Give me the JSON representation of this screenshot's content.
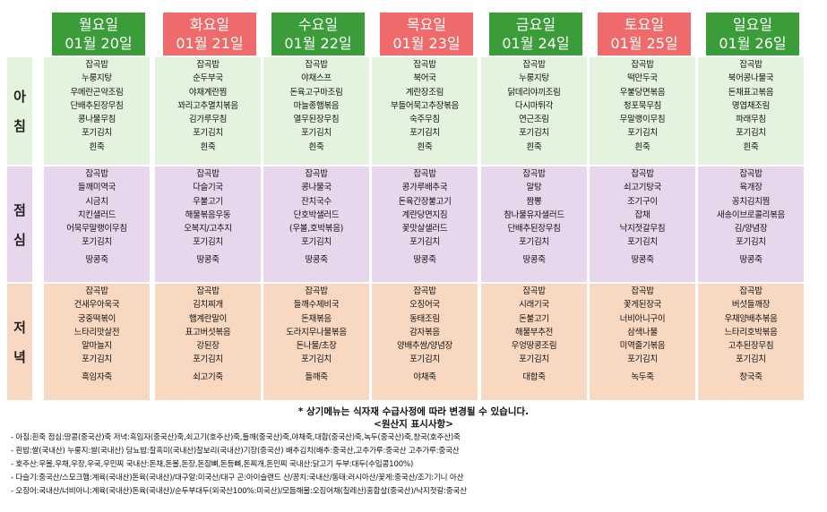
{
  "meal_labels": {
    "breakfast": [
      "아",
      "침"
    ],
    "lunch": [
      "점",
      "심"
    ],
    "dinner": [
      "저",
      "녁"
    ]
  },
  "days": [
    {
      "day": "월요일",
      "date": "01월 20일",
      "holiday": false,
      "breakfast": [
        "잡곡밥",
        "누룽지탕",
        "우메란곤약조림",
        "단배추된장무침",
        "콩나물무침",
        "포기김치",
        "흰죽"
      ],
      "lunch": [
        "잡곡밥",
        "들깨미역국",
        "시금치",
        "치킨샐러드",
        "어묵무말랭이무침",
        "포기김치",
        "땅콩죽"
      ],
      "dinner": [
        "잡곡밥",
        "건새우아욱국",
        "궁중떡볶이",
        "느타리맛살전",
        "알마늘지",
        "포기김치",
        "흑임자죽"
      ]
    },
    {
      "day": "화요일",
      "date": "01월 21일",
      "holiday": true,
      "breakfast": [
        "잡곡밥",
        "순두부국",
        "야채계란찜",
        "꽈리고추멸치볶음",
        "김가루무침",
        "포기김치",
        "흰죽"
      ],
      "lunch": [
        "잡곡밥",
        "다슬기국",
        "우불고기",
        "해물볶음우동",
        "오복지/고추지",
        "포기김치",
        "땅콩죽"
      ],
      "dinner": [
        "잡곡밥",
        "김치찌개",
        "햄계란말이",
        "표고버섯볶음",
        "강된장",
        "포기김치",
        "쇠고기죽"
      ]
    },
    {
      "day": "수요일",
      "date": "01월 22일",
      "holiday": false,
      "breakfast": [
        "잡곡밥",
        "야채스프",
        "돈육고구마조림",
        "마늘종햄볶음",
        "열무된장무침",
        "포기김치",
        "흰죽"
      ],
      "lunch": [
        "잡곡밥",
        "콩나물국",
        "잔치국수",
        "단호박샐러드",
        "(우볼,호박볶음)",
        "포기김치",
        "땅콩죽"
      ],
      "dinner": [
        "잡곡밥",
        "들깨수제비국",
        "돈채볶음",
        "도라지무나물볶음",
        "돈나물/초장",
        "포기김치",
        "들깨죽"
      ]
    },
    {
      "day": "목요일",
      "date": "01월 23일",
      "holiday": true,
      "breakfast": [
        "잡곡밥",
        "북어국",
        "계란장조림",
        "부들어묵고추장볶음",
        "숙주무침",
        "포기김치",
        "흰죽"
      ],
      "lunch": [
        "잡곡밥",
        "콩가루배추국",
        "돈육간장불고기",
        "계란당면지짐",
        "꽃맛살샐러드",
        "포기김치",
        "땅콩죽"
      ],
      "dinner": [
        "잡곡밥",
        "오징어국",
        "동태조림",
        "감자볶음",
        "양배추쌈/양념장",
        "포기김치",
        "야채죽"
      ]
    },
    {
      "day": "금요일",
      "date": "01월 24일",
      "holiday": false,
      "breakfast": [
        "잡곡밥",
        "누룽지탕",
        "닭데리야끼조림",
        "다시마튀각",
        "연근조림",
        "포기김치",
        "흰죽"
      ],
      "lunch": [
        "잡곡밥",
        "알탕",
        "짬뽕",
        "참나물유자샐러드",
        "단배추된장무침",
        "포기김치",
        "땅콩죽"
      ],
      "dinner": [
        "잡곡밥",
        "시래기국",
        "돈불고기",
        "해물부추전",
        "우엉땅콩조림",
        "포기김치",
        "대합죽"
      ]
    },
    {
      "day": "토요일",
      "date": "01월 25일",
      "holiday": true,
      "breakfast": [
        "잡곡밥",
        "떡만두국",
        "우불당면볶음",
        "청포묵무침",
        "무말랭이무침",
        "포기김치",
        "흰죽"
      ],
      "lunch": [
        "잡곡밥",
        "쇠고기탕국",
        "조기구이",
        "잡채",
        "낙지젓갈무침",
        "포기김치",
        "땅콩죽"
      ],
      "dinner": [
        "잡곡밥",
        "꽃게된장국",
        "너비아니구이",
        "삼색나물",
        "미역줄기볶음",
        "포기김치",
        "녹두죽"
      ]
    },
    {
      "day": "일요일",
      "date": "01월 26일",
      "holiday": false,
      "breakfast": [
        "잡곡밥",
        "북어콩나물국",
        "돈채표고볶음",
        "명엽채조림",
        "파래무침",
        "포기김치",
        "흰죽"
      ],
      "lunch": [
        "잡곡밥",
        "육개장",
        "꽁치김치찜",
        "새송이브로콜리볶음",
        "김/양념장",
        "포기김치",
        "땅콩죽"
      ],
      "dinner": [
        "잡곡밥",
        "버섯들깨장",
        "우채양배추볶음",
        "느타리호박볶음",
        "고추된장무침",
        "포기김치",
        "창국죽"
      ]
    }
  ],
  "notice": "* 상기메뉴는 식자재 수급사정에 따라 변경될 수 있습니다.",
  "origin_title": "<원산지 표시사항>",
  "origin_lines": [
    "- 아침:흰죽  점심:땅콩(중국산)죽  저녁:흑임자(중국산)죽,쇠고기(호주산)죽,들깨(중국산)죽,야채죽,대합(중국산)죽,녹두(중국산)죽,창국(호주산)죽",
    "- 흰밥:쌀(국내산) 누룽지:쌀(국내산) 당뇨밥:찰흑미(국내산)찰보리(국내산)기장(중국산) 배추김치(배추:중국산,고추가루:중국산  고추가루:중국산",
    "- 호주산:우볼,우채,우장,우국,우민찌   국내산:돈채,돈볼,돈장,돈잡뼈,돈등뼈,돈찌개,돈민찌   국내산:닭고기   두부:대두(수입콩100%)",
    "- 다슬기:중국산/스모크햄:계육(국내산)돈육(국내산)/대구알:미국산/대구 곤:아이슬랜드 산/꽁치:국내산/동태:러시아산/꽃게:중국산/조기:기니 아산",
    "- 오징어:국내산/너비아니:계육(국내산)돈육(국내산)/순두부대두(외국산100%:미국산)/모듬해물:오징어채(칠레산)홍합살(중국산)/낙지젓갈:중국산"
  ],
  "colors": {
    "weekday_header": "#3a9d3a",
    "holiday_header": "#ef6b6b",
    "breakfast_bg": "#e3f3de",
    "lunch_bg": "#e7d6ec",
    "dinner_bg": "#f9d8c2"
  }
}
